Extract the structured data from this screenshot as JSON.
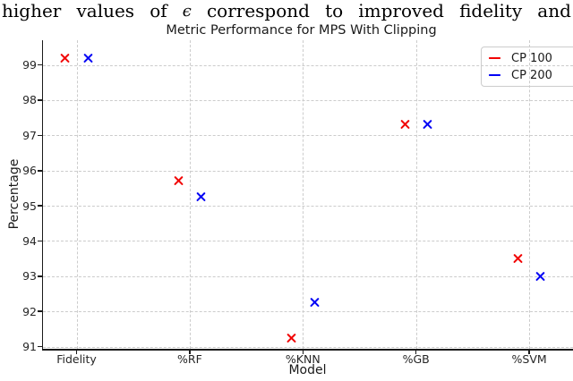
{
  "context_line": {
    "tokens": [
      {
        "t": "higher"
      },
      {
        "t": "values"
      },
      {
        "t": "of"
      },
      {
        "t": "ϵ",
        "italic": true
      },
      {
        "t": "correspond"
      },
      {
        "t": "to"
      },
      {
        "t": "improved"
      },
      {
        "t": "fidelity"
      },
      {
        "t": "and"
      }
    ]
  },
  "chart_data": {
    "type": "scatter",
    "title": "Metric Performance for MPS With Clipping",
    "xlabel": "Model",
    "ylabel": "Percentage",
    "categories": [
      "Fidelity",
      "%RF",
      "%KNN",
      "%GB",
      "%SVM"
    ],
    "series": [
      {
        "name": "CP 100",
        "marker": "x",
        "color": "#f10000",
        "values": [
          99.2,
          95.7,
          91.25,
          97.3,
          93.5
        ]
      },
      {
        "name": "CP 200",
        "marker": "x",
        "color": "#0000f5",
        "values": [
          99.2,
          95.25,
          92.25,
          97.3,
          93.0
        ]
      }
    ],
    "yticks": [
      91,
      92,
      93,
      94,
      95,
      96,
      97,
      98,
      99
    ],
    "ylim": [
      90.94,
      99.7
    ],
    "grid": true,
    "legend_position": "upper right",
    "colors": {
      "grid": "#cccccc",
      "axis": "#1a1a1a",
      "text": "#262626"
    }
  }
}
